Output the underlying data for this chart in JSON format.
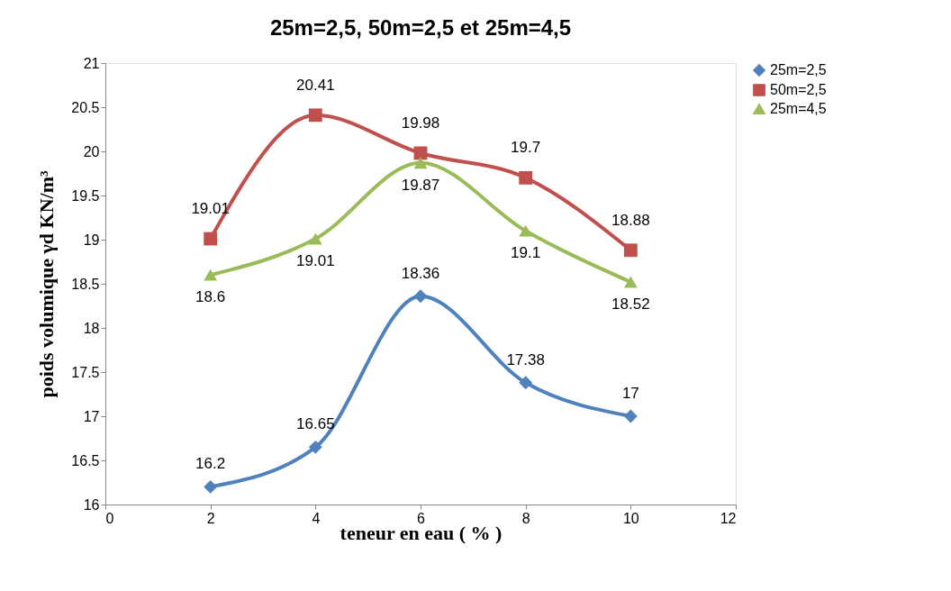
{
  "chart_data": {
    "type": "line",
    "title": "25m=2,5, 50m=2,5 et 25m=4,5",
    "xlabel": "teneur en eau ( % )",
    "ylabel": "poids volumique γd KN/m³",
    "x": [
      2,
      4,
      6,
      8,
      10
    ],
    "series": [
      {
        "name": "25m=2,5",
        "color": "#4f81bd",
        "marker": "diamond",
        "values": [
          16.2,
          16.65,
          18.36,
          17.38,
          17
        ]
      },
      {
        "name": "50m=2,5",
        "color": "#c0504d",
        "marker": "square",
        "values": [
          19.01,
          20.41,
          19.98,
          19.7,
          18.88
        ]
      },
      {
        "name": "25m=4,5",
        "color": "#9bbb59",
        "marker": "triangle",
        "values": [
          18.6,
          19.01,
          19.87,
          19.1,
          18.52
        ]
      }
    ],
    "xlim": [
      0,
      12
    ],
    "xticks": [
      0,
      2,
      4,
      6,
      8,
      10,
      12
    ],
    "ylim": [
      16,
      21
    ],
    "yticks": [
      16,
      16.5,
      17,
      17.5,
      18,
      18.5,
      19,
      19.5,
      20,
      20.5,
      21
    ],
    "grid": false,
    "legend": "right",
    "data_labels": true,
    "line_style": "solid"
  }
}
